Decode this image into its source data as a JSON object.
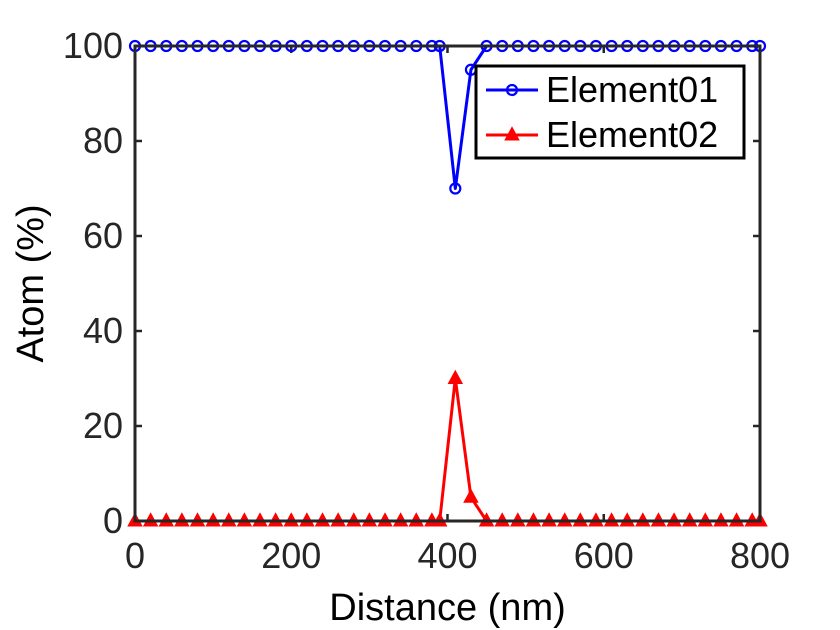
{
  "chart_data": {
    "type": "line",
    "title": "",
    "xlabel": "Distance (nm)",
    "ylabel": "Atom (%)",
    "xlim": [
      0,
      800
    ],
    "ylim": [
      0,
      100
    ],
    "xticks": [
      0,
      200,
      400,
      600,
      800
    ],
    "yticks": [
      0,
      20,
      40,
      60,
      80,
      100
    ],
    "xtick_labels": [
      "0",
      "200",
      "400",
      "600",
      "800"
    ],
    "ytick_labels": [
      "0",
      "20",
      "40",
      "60",
      "80",
      "100"
    ],
    "grid": false,
    "box": true,
    "legend_position": "top-right",
    "x": [
      0,
      20,
      40,
      60,
      80,
      100,
      120,
      140,
      160,
      180,
      200,
      220,
      240,
      260,
      280,
      300,
      320,
      340,
      360,
      380,
      390,
      410,
      430,
      450,
      470,
      490,
      510,
      530,
      550,
      570,
      590,
      610,
      630,
      650,
      670,
      690,
      710,
      730,
      750,
      770,
      790,
      800
    ],
    "series": [
      {
        "name": "Element01",
        "color": "#0000ff",
        "marker": "circle",
        "values": [
          100,
          100,
          100,
          100,
          100,
          100,
          100,
          100,
          100,
          100,
          100,
          100,
          100,
          100,
          100,
          100,
          100,
          100,
          100,
          100,
          100,
          70,
          95,
          100,
          100,
          100,
          100,
          100,
          100,
          100,
          100,
          100,
          100,
          100,
          100,
          100,
          100,
          100,
          100,
          100,
          100,
          100
        ]
      },
      {
        "name": "Element02",
        "color": "#ff0000",
        "marker": "triangle",
        "values": [
          0,
          0,
          0,
          0,
          0,
          0,
          0,
          0,
          0,
          0,
          0,
          0,
          0,
          0,
          0,
          0,
          0,
          0,
          0,
          0,
          0,
          30,
          5,
          0,
          0,
          0,
          0,
          0,
          0,
          0,
          0,
          0,
          0,
          0,
          0,
          0,
          0,
          0,
          0,
          0,
          0,
          0
        ]
      }
    ]
  }
}
